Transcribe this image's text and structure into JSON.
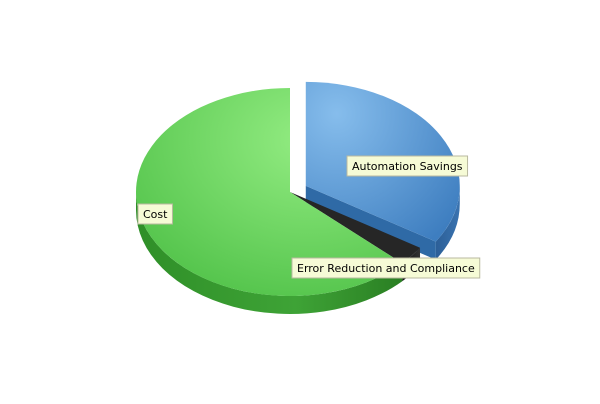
{
  "chart_data": {
    "type": "pie",
    "title": "",
    "slices": [
      {
        "label": "Automation Savings",
        "value": 34,
        "color": "#4b8fd2",
        "exploded": true
      },
      {
        "label": "Error Reduction and Compliance",
        "value": 3,
        "color": "#1a1a1a",
        "exploded": false
      },
      {
        "label": "Cost",
        "value": 63,
        "color": "#5cc85a",
        "exploded": false
      }
    ],
    "legend": "none",
    "style": "3d"
  }
}
